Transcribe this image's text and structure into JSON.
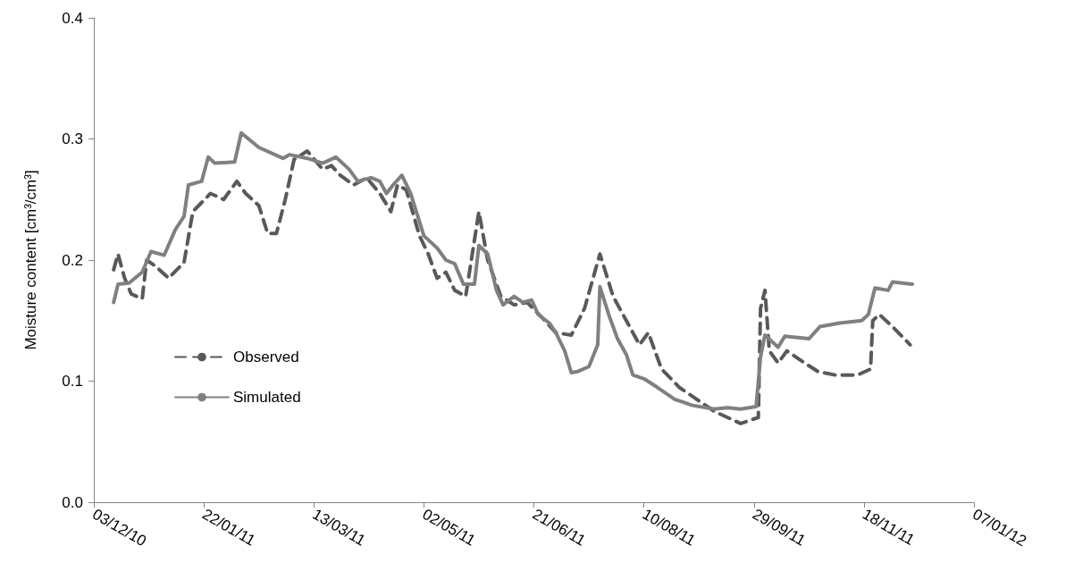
{
  "chart_data": {
    "type": "line",
    "ylabel": "Moisture content [cm³/cm³]",
    "xlim": [
      "2010-12-03",
      "2012-01-07"
    ],
    "xticks": [
      {
        "value": "2010-12-03",
        "label": "03/12/10"
      },
      {
        "value": "2011-01-22",
        "label": "22/01/11"
      },
      {
        "value": "2011-03-13",
        "label": "13/03/11"
      },
      {
        "value": "2011-05-02",
        "label": "02/05/11"
      },
      {
        "value": "2011-06-21",
        "label": "21/06/11"
      },
      {
        "value": "2011-08-10",
        "label": "10/08/11"
      },
      {
        "value": "2011-09-29",
        "label": "29/09/11"
      },
      {
        "value": "2011-11-18",
        "label": "18/11/11"
      },
      {
        "value": "2012-01-07",
        "label": "07/01/12"
      }
    ],
    "ylim": [
      0,
      0.4
    ],
    "yticks": [
      {
        "value": 0,
        "label": "0.0"
      },
      0.1,
      0.2,
      0.3,
      0.4
    ],
    "grid": false,
    "legend": "left",
    "marker": "none",
    "series": [
      {
        "name": "Observed",
        "color": "#595959",
        "line_style": "dashed",
        "x": [
          "2010-12-12",
          "2010-12-14",
          "2010-12-17",
          "2010-12-20",
          "2010-12-25",
          "2010-12-27",
          "2010-12-31",
          "2011-01-06",
          "2011-01-13",
          "2011-01-17",
          "2011-01-25",
          "2011-01-31",
          "2011-02-06",
          "2011-02-10",
          "2011-02-16",
          "2011-02-20",
          "2011-02-24",
          "2011-02-28",
          "2011-03-04",
          "2011-03-10",
          "2011-03-17",
          "2011-03-21",
          "2011-03-25",
          "2011-03-31",
          "2011-04-06",
          "2011-04-12",
          "2011-04-17",
          "2011-04-20",
          "2011-04-24",
          "2011-04-30",
          "2011-05-04",
          "2011-05-08",
          "2011-05-12",
          "2011-05-16",
          "2011-05-21",
          "2011-05-27",
          "2011-05-31",
          "2011-06-06",
          "2011-06-12",
          "2011-06-18",
          "2011-06-26",
          "2011-07-01",
          "2011-07-08",
          "2011-07-14",
          "2011-07-21",
          "2011-07-27",
          "2011-08-02",
          "2011-08-08",
          "2011-08-12",
          "2011-08-18",
          "2011-08-26",
          "2011-09-03",
          "2011-09-11",
          "2011-09-23",
          "2011-10-01",
          "2011-10-02",
          "2011-10-04",
          "2011-10-06",
          "2011-10-10",
          "2011-10-14",
          "2011-10-22",
          "2011-10-28",
          "2011-11-05",
          "2011-11-15",
          "2011-11-21",
          "2011-11-22",
          "2011-11-25",
          "2011-12-01",
          "2011-12-09"
        ],
        "values": [
          0.192,
          0.205,
          0.185,
          0.172,
          0.168,
          0.2,
          0.195,
          0.185,
          0.198,
          0.24,
          0.255,
          0.25,
          0.265,
          0.255,
          0.245,
          0.222,
          0.222,
          0.25,
          0.283,
          0.29,
          0.275,
          0.278,
          0.27,
          0.262,
          0.268,
          0.255,
          0.24,
          0.262,
          0.258,
          0.22,
          0.205,
          0.185,
          0.19,
          0.175,
          0.17,
          0.24,
          0.2,
          0.17,
          0.163,
          0.165,
          0.15,
          0.14,
          0.138,
          0.16,
          0.205,
          0.17,
          0.15,
          0.13,
          0.14,
          0.11,
          0.095,
          0.085,
          0.075,
          0.065,
          0.07,
          0.16,
          0.175,
          0.125,
          0.115,
          0.125,
          0.115,
          0.108,
          0.105,
          0.105,
          0.11,
          0.15,
          0.155,
          0.145,
          0.13
        ]
      },
      {
        "name": "Simulated",
        "color": "#808080",
        "line_style": "solid",
        "x": [
          "2010-12-12",
          "2010-12-14",
          "2010-12-19",
          "2010-12-25",
          "2010-12-29",
          "2011-01-04",
          "2011-01-09",
          "2011-01-13",
          "2011-01-15",
          "2011-01-21",
          "2011-01-24",
          "2011-01-27",
          "2011-02-05",
          "2011-02-08",
          "2011-02-16",
          "2011-02-27",
          "2011-03-02",
          "2011-03-10",
          "2011-03-17",
          "2011-03-23",
          "2011-03-29",
          "2011-04-02",
          "2011-04-08",
          "2011-04-12",
          "2011-04-15",
          "2011-04-18",
          "2011-04-22",
          "2011-04-26",
          "2011-05-02",
          "2011-05-08",
          "2011-05-12",
          "2011-05-16",
          "2011-05-20",
          "2011-05-25",
          "2011-05-27",
          "2011-05-31",
          "2011-06-04",
          "2011-06-07",
          "2011-06-12",
          "2011-06-16",
          "2011-06-20",
          "2011-06-23",
          "2011-06-28",
          "2011-07-01",
          "2011-07-05",
          "2011-07-08",
          "2011-07-11",
          "2011-07-16",
          "2011-07-20",
          "2011-07-21",
          "2011-07-25",
          "2011-07-29",
          "2011-08-02",
          "2011-08-05",
          "2011-08-10",
          "2011-08-16",
          "2011-08-24",
          "2011-09-01",
          "2011-09-11",
          "2011-09-17",
          "2011-09-23",
          "2011-09-30",
          "2011-10-02",
          "2011-10-04",
          "2011-10-10",
          "2011-10-13",
          "2011-10-24",
          "2011-10-29",
          "2011-11-07",
          "2011-11-17",
          "2011-11-20",
          "2011-11-23",
          "2011-11-29",
          "2011-12-01",
          "2011-12-10"
        ],
        "values": [
          0.165,
          0.18,
          0.181,
          0.19,
          0.207,
          0.204,
          0.225,
          0.236,
          0.262,
          0.265,
          0.285,
          0.28,
          0.281,
          0.305,
          0.293,
          0.284,
          0.287,
          0.284,
          0.28,
          0.285,
          0.275,
          0.265,
          0.268,
          0.265,
          0.255,
          0.262,
          0.27,
          0.255,
          0.22,
          0.21,
          0.2,
          0.197,
          0.18,
          0.18,
          0.212,
          0.205,
          0.175,
          0.163,
          0.17,
          0.165,
          0.167,
          0.155,
          0.148,
          0.14,
          0.125,
          0.107,
          0.108,
          0.112,
          0.13,
          0.178,
          0.155,
          0.135,
          0.122,
          0.105,
          0.102,
          0.095,
          0.085,
          0.08,
          0.077,
          0.078,
          0.077,
          0.079,
          0.12,
          0.138,
          0.128,
          0.137,
          0.135,
          0.145,
          0.148,
          0.15,
          0.155,
          0.177,
          0.175,
          0.182,
          0.18
        ]
      }
    ]
  }
}
